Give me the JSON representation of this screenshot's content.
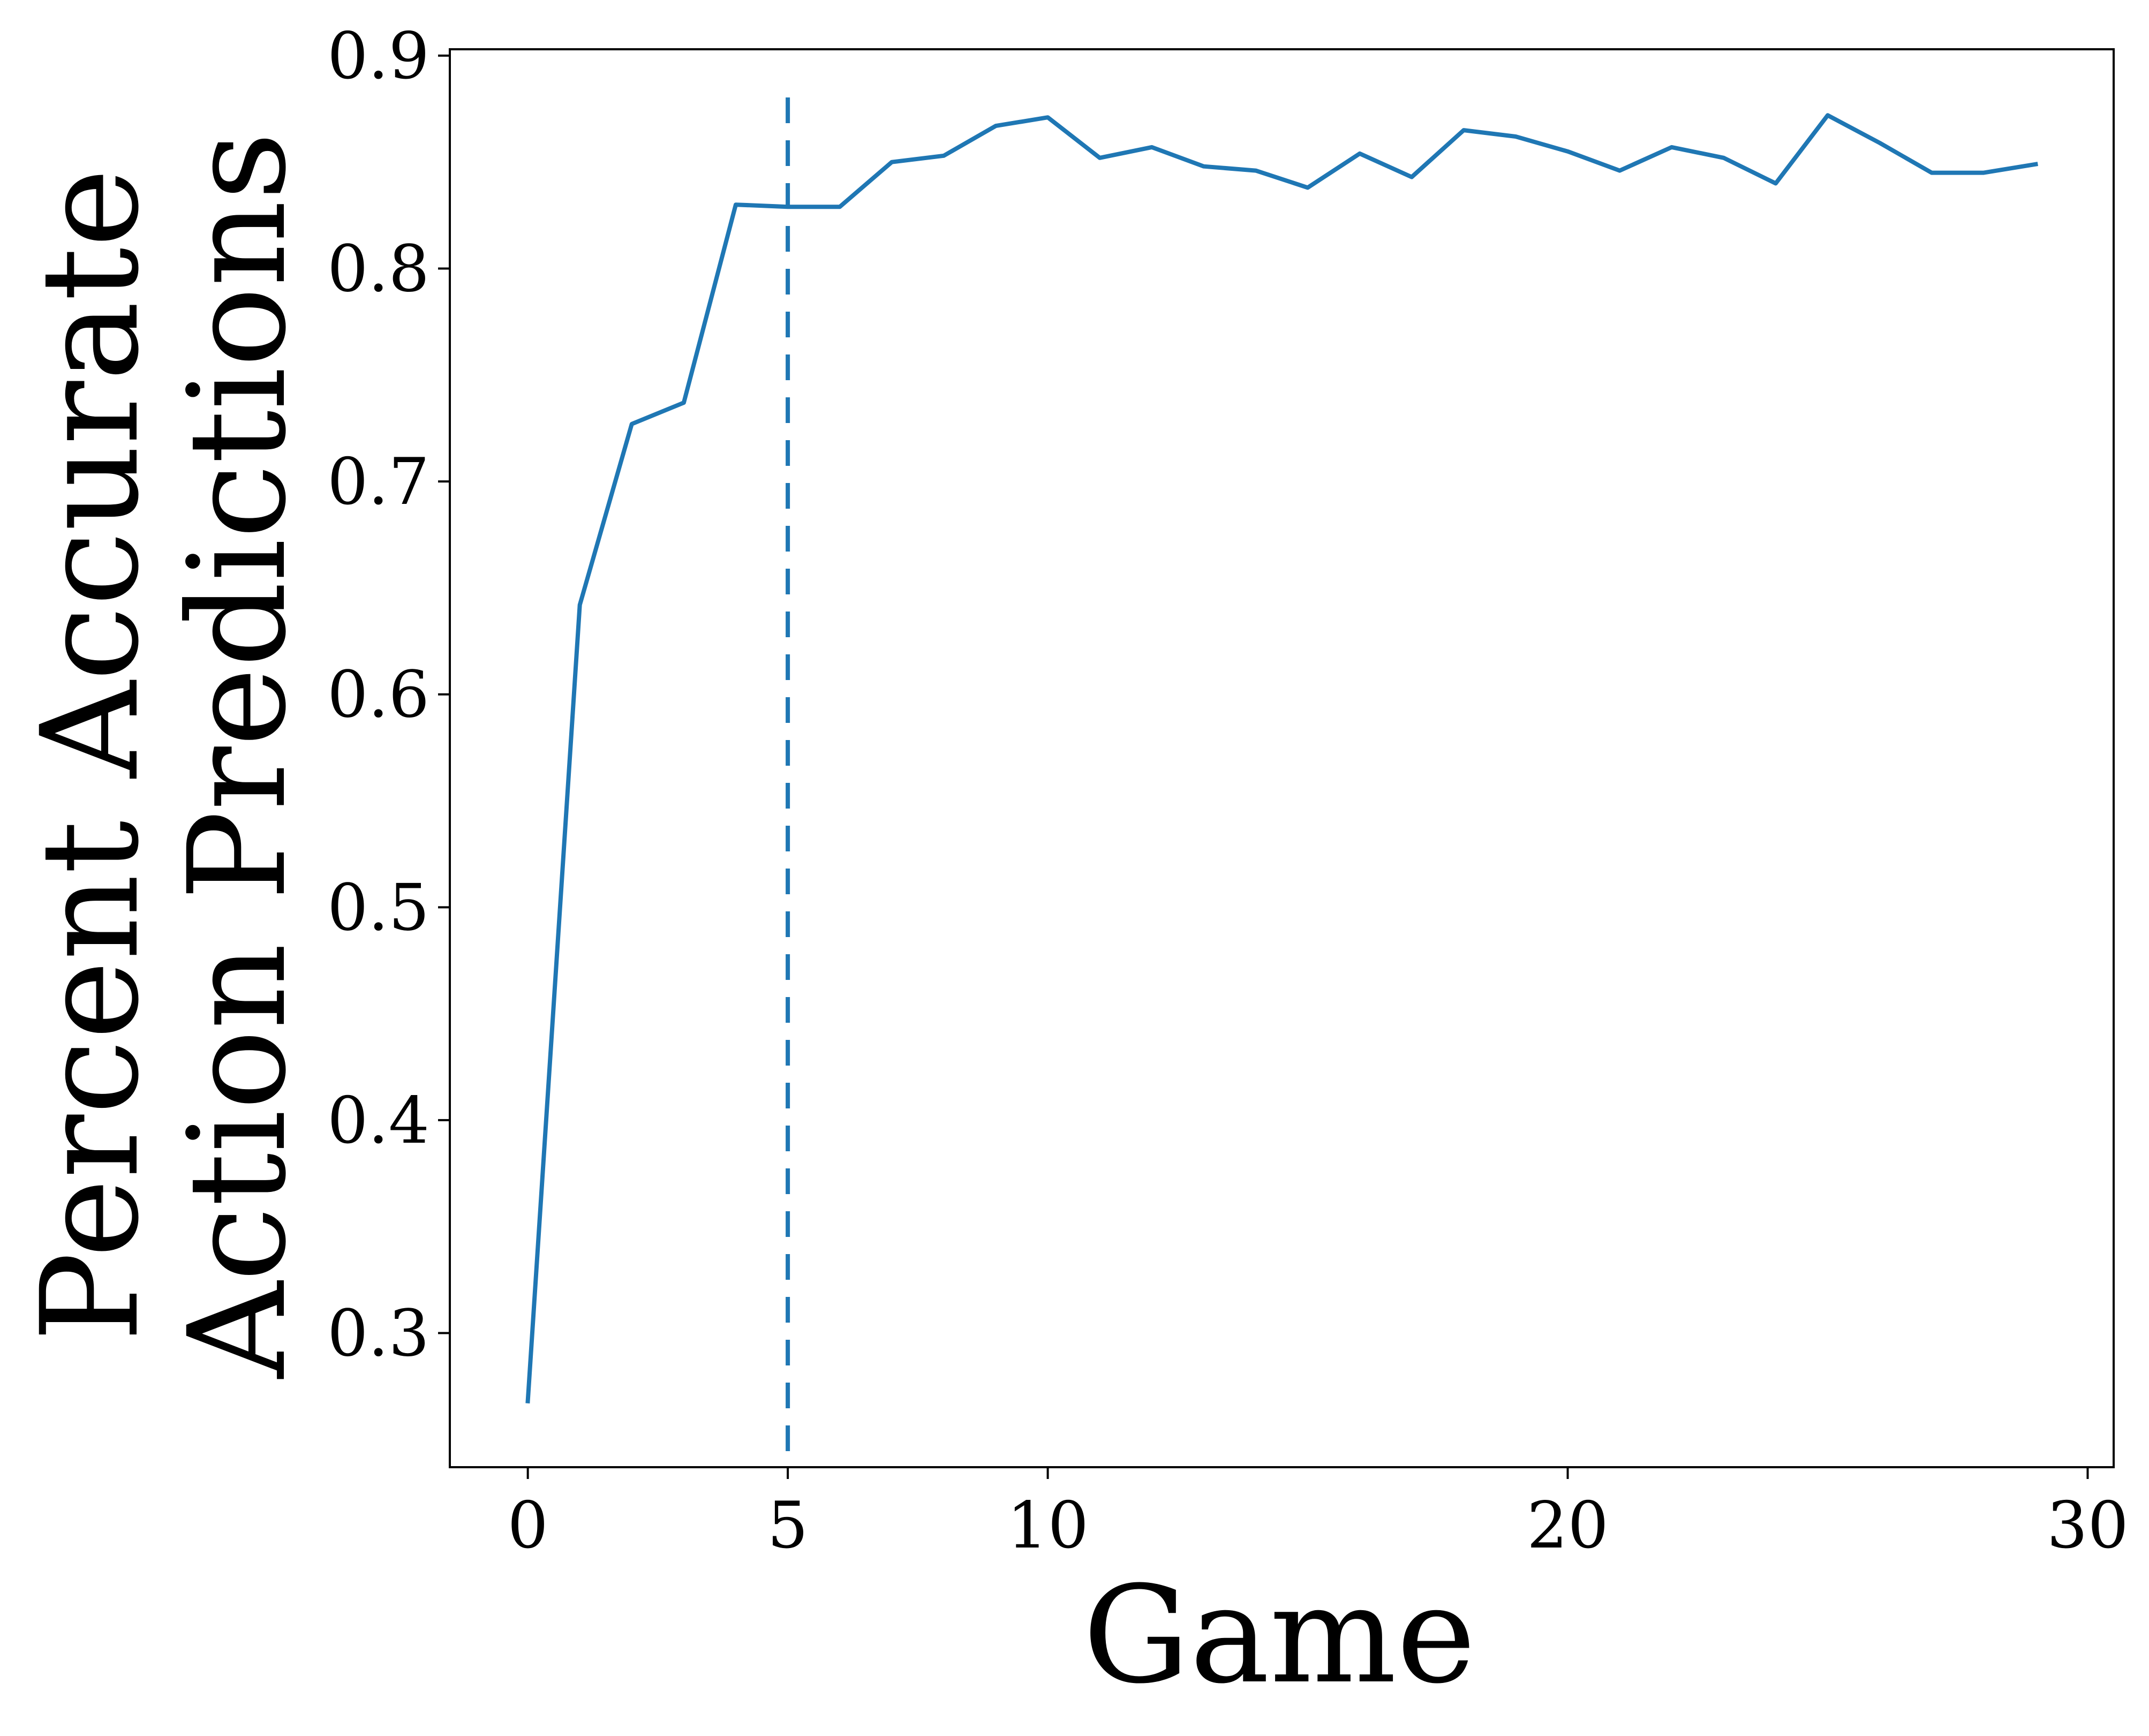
{
  "chart_data": {
    "type": "line",
    "title": "",
    "xlabel": "Game",
    "ylabel_lines": [
      "Percent Accurate",
      "Action Predictions"
    ],
    "xlim": [
      -1.5,
      30.5
    ],
    "ylim": [
      0.237,
      0.903
    ],
    "xticks": [
      0,
      5,
      10,
      20,
      30
    ],
    "yticks": [
      0.3,
      0.4,
      0.5,
      0.6,
      0.7,
      0.8,
      0.9
    ],
    "xtick_labels": [
      "0",
      "5",
      "10",
      "20",
      "30"
    ],
    "ytick_labels": [
      "0.3",
      "0.4",
      "0.5",
      "0.6",
      "0.7",
      "0.8",
      "0.9"
    ],
    "grid": false,
    "series": [
      {
        "name": "accuracy",
        "color": "#1f77b4",
        "x": [
          0,
          1,
          2,
          3,
          4,
          5,
          6,
          7,
          8,
          9,
          10,
          11,
          12,
          13,
          14,
          15,
          16,
          17,
          18,
          19,
          20,
          21,
          22,
          23,
          24,
          25,
          26,
          27,
          28,
          29
        ],
        "values": [
          0.268,
          0.642,
          0.727,
          0.737,
          0.83,
          0.829,
          0.829,
          0.85,
          0.853,
          0.867,
          0.871,
          0.852,
          0.857,
          0.848,
          0.846,
          0.838,
          0.854,
          0.843,
          0.865,
          0.862,
          0.855,
          0.846,
          0.857,
          0.852,
          0.84,
          0.872,
          0.859,
          0.845,
          0.845,
          0.849
        ]
      }
    ],
    "vline": {
      "x": 5,
      "style": "dashed",
      "color": "#1f77b4"
    }
  }
}
